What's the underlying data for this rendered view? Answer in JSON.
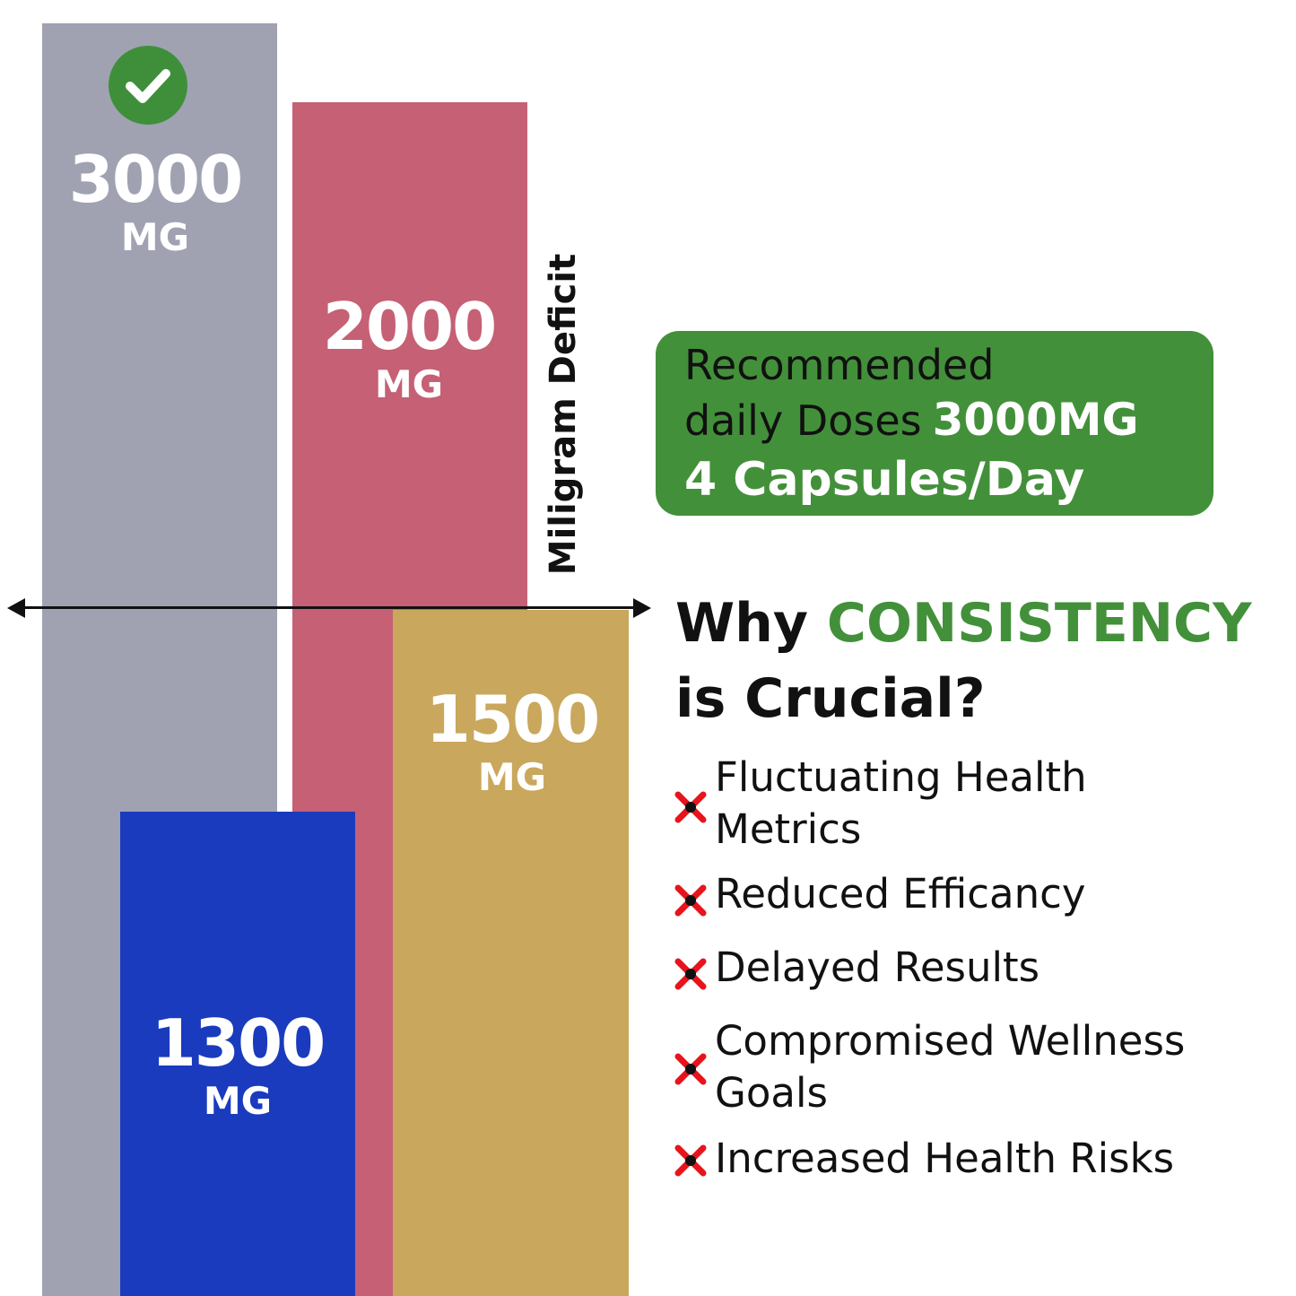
{
  "chart_data": {
    "type": "bar",
    "unit": "MG",
    "bars": [
      {
        "value": 3000,
        "value_label": "3000",
        "unit_label": "MG",
        "color": "#a0a2b2",
        "checked": true
      },
      {
        "value": 2000,
        "value_label": "2000",
        "unit_label": "MG",
        "color": "#c56075"
      },
      {
        "value": 1500,
        "value_label": "1500",
        "unit_label": "MG",
        "color": "#c9a75c"
      },
      {
        "value": 1300,
        "value_label": "1300",
        "unit_label": "MG",
        "color": "#1a3bbd"
      }
    ],
    "annotation": "Miligram Deficit"
  },
  "recommendation": {
    "line1": "Recommended",
    "line2_prefix": "daily Doses",
    "dose": "3000MG",
    "line3": "4 Capsules/Day",
    "color": "#43903a"
  },
  "heading": {
    "part1": "Why",
    "highlight": "CONSISTENCY",
    "part2": "is Crucial?",
    "highlight_color": "#43903a"
  },
  "reasons": [
    {
      "line1": "Fluctuating Health",
      "line2": "Metrics",
      "icon": "x-icon"
    },
    {
      "line1": "Reduced Efficancy",
      "line2": "",
      "icon": "x-icon"
    },
    {
      "line1": "Delayed Results",
      "line2": "",
      "icon": "x-icon"
    },
    {
      "line1": "Compromised Wellness",
      "line2": "Goals",
      "icon": "x-icon"
    },
    {
      "line1": "Increased Health Risks",
      "line2": "",
      "icon": "x-icon"
    }
  ],
  "colors": {
    "cross_red": "#e8141c",
    "axis": "#111111"
  }
}
